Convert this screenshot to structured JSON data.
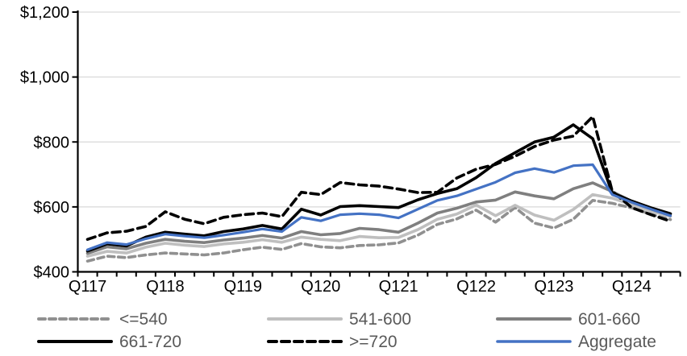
{
  "chart_data": {
    "type": "line",
    "title": "",
    "xlabel": "",
    "ylabel": "",
    "x_categories": [
      "Q1 2017",
      "Q2 2017",
      "Q3 2017",
      "Q4 2017",
      "Q1 2018",
      "Q2 2018",
      "Q3 2018",
      "Q4 2018",
      "Q1 2019",
      "Q2 2019",
      "Q3 2019",
      "Q4 2019",
      "Q1 2020",
      "Q2 2020",
      "Q3 2020",
      "Q4 2020",
      "Q1 2021",
      "Q2 2021",
      "Q3 2021",
      "Q4 2021",
      "Q1 2022",
      "Q2 2022",
      "Q3 2022",
      "Q4 2022",
      "Q1 2023",
      "Q2 2023",
      "Q3 2023",
      "Q4 2023",
      "Q1 2024",
      "Q2 2024",
      "Q3 2024"
    ],
    "x_tick_labels": [
      "Q117",
      "Q118",
      "Q119",
      "Q120",
      "Q121",
      "Q122",
      "Q123",
      "Q124"
    ],
    "x_label_every": 4,
    "y_axis": {
      "min": 400,
      "max": 1200,
      "step": 200,
      "tick_labels": [
        "$400",
        "$600",
        "$800",
        "$1,000",
        "$1,200"
      ]
    },
    "grid": true,
    "legend_position": "bottom",
    "series": [
      {
        "name": "<=540",
        "color": "#909090",
        "dash": "8 5",
        "width": 3.6,
        "values": [
          433,
          448,
          444,
          452,
          458,
          455,
          452,
          458,
          468,
          476,
          469,
          487,
          477,
          474,
          481,
          483,
          489,
          513,
          546,
          563,
          590,
          553,
          598,
          550,
          535,
          562,
          620,
          611,
          597,
          577,
          561
        ]
      },
      {
        "name": "541-600",
        "color": "#BFBFBF",
        "dash": "",
        "width": 3.6,
        "values": [
          448,
          463,
          458,
          476,
          488,
          482,
          478,
          486,
          491,
          499,
          491,
          507,
          500,
          496,
          509,
          505,
          506,
          530,
          562,
          578,
          606,
          573,
          605,
          575,
          559,
          592,
          638,
          627,
          607,
          587,
          571
        ]
      },
      {
        "name": "601-660",
        "color": "#7F7F7F",
        "dash": "",
        "width": 3.6,
        "values": [
          457,
          477,
          471,
          488,
          500,
          494,
          490,
          498,
          504,
          512,
          504,
          524,
          514,
          518,
          534,
          530,
          522,
          550,
          581,
          596,
          615,
          621,
          646,
          634,
          625,
          656,
          674,
          647,
          617,
          595,
          578
        ]
      },
      {
        "name": "661-720",
        "color": "#000000",
        "dash": "",
        "width": 3.6,
        "values": [
          464,
          486,
          480,
          507,
          522,
          516,
          511,
          524,
          532,
          543,
          532,
          593,
          575,
          601,
          604,
          601,
          598,
          622,
          641,
          656,
          690,
          734,
          767,
          800,
          815,
          853,
          810,
          643,
          618,
          597,
          579
        ]
      },
      {
        "name": ">=720",
        "color": "#000000",
        "dash": "10 6",
        "width": 3.6,
        "values": [
          500,
          520,
          525,
          540,
          585,
          562,
          548,
          568,
          576,
          581,
          570,
          645,
          638,
          675,
          668,
          664,
          655,
          644,
          645,
          689,
          716,
          731,
          756,
          786,
          806,
          818,
          878,
          648,
          598,
          576,
          556
        ]
      },
      {
        "name": "Aggregate",
        "color": "#4472C4",
        "dash": "",
        "width": 3.2,
        "values": [
          468,
          490,
          484,
          502,
          516,
          510,
          505,
          513,
          522,
          532,
          524,
          568,
          557,
          576,
          579,
          576,
          566,
          593,
          620,
          634,
          655,
          676,
          705,
          718,
          706,
          727,
          730,
          638,
          614,
          593,
          573
        ]
      }
    ],
    "legend_rows": [
      [
        "<=540",
        "541-600",
        "601-660"
      ],
      [
        "661-720",
        ">=720",
        "Aggregate"
      ]
    ]
  },
  "styles": {
    "grid_color": "#D9D9D9",
    "axis_color": "#000000",
    "tick_label_color": "#000000",
    "legend_text_color": "#595959",
    "background": "#FFFFFF"
  }
}
